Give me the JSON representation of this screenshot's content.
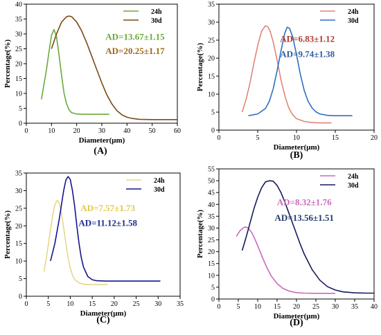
{
  "chart_data": [
    {
      "type": "line",
      "panel_label": "(A)",
      "xlabel": "Diameter(μm)",
      "ylabel": "Percentage(%)",
      "xlim": [
        0,
        60
      ],
      "ylim": [
        0,
        40
      ],
      "xticks": [
        0,
        10,
        20,
        30,
        40,
        50,
        60
      ],
      "yticks": [
        0,
        5,
        10,
        15,
        20,
        25,
        30,
        35,
        40
      ],
      "legend_position": "top-right",
      "annotations": [
        {
          "text": "AD=13.67±1.15",
          "color": "#6aaa3a"
        },
        {
          "text": "AD=20.25±1.17",
          "color": "#a0661a"
        }
      ],
      "series": [
        {
          "name": "24h",
          "color": "#6aaa3a",
          "x": [
            6,
            7,
            8,
            9,
            10,
            11,
            12,
            13,
            14,
            15,
            16,
            17,
            18,
            20,
            22,
            25,
            28,
            30,
            33
          ],
          "y": [
            8,
            13,
            18,
            24,
            29.5,
            31.5,
            29,
            23,
            16,
            10,
            6.5,
            4.5,
            3.5,
            3.1,
            3,
            3,
            3,
            3,
            3
          ]
        },
        {
          "name": "30d",
          "color": "#7b4a14",
          "x": [
            10,
            12,
            14,
            16,
            17,
            18,
            20,
            22,
            24,
            26,
            28,
            30,
            32,
            34,
            36,
            38,
            40,
            42,
            45,
            50,
            55,
            60
          ],
          "y": [
            25,
            30,
            34,
            35.8,
            36,
            35.8,
            34,
            31,
            27,
            22.5,
            18,
            13.5,
            9.5,
            6.5,
            4.2,
            2.8,
            2,
            1.6,
            1.3,
            1.2,
            1.2,
            1.2
          ]
        }
      ]
    },
    {
      "type": "line",
      "panel_label": "(B)",
      "xlabel": "Diameter(μm)",
      "ylabel": "Percentage(%)",
      "xlim": [
        0,
        20
      ],
      "ylim": [
        0,
        35
      ],
      "xticks": [
        0,
        5,
        10,
        15,
        20
      ],
      "yticks": [
        0,
        5,
        10,
        15,
        20,
        25,
        30,
        35
      ],
      "legend_position": "top-right",
      "annotations": [
        {
          "text": "AD=6.83±1.12",
          "color": "#b03a2e"
        },
        {
          "text": "AD=9.74±1.38",
          "color": "#2f5d9e"
        }
      ],
      "series": [
        {
          "name": "24h",
          "color": "#e08478",
          "x": [
            3,
            3.5,
            4,
            4.5,
            5,
            5.5,
            6,
            6.3,
            6.6,
            7,
            7.5,
            8,
            8.5,
            9,
            9.5,
            10,
            11,
            12,
            13,
            14.5
          ],
          "y": [
            5,
            8.5,
            13,
            18.5,
            23.5,
            27.5,
            29,
            28.7,
            27.5,
            24.5,
            19.5,
            14,
            9.5,
            6.2,
            4.3,
            3.2,
            2.4,
            2.1,
            2,
            2
          ]
        },
        {
          "name": "30d",
          "color": "#2f6ebf",
          "x": [
            3.8,
            5,
            6,
            6.5,
            7,
            7.5,
            8,
            8.5,
            8.8,
            9.1,
            9.5,
            10,
            10.5,
            11,
            11.5,
            12,
            12.5,
            13,
            14,
            15,
            16,
            17.2
          ],
          "y": [
            4,
            4.5,
            6,
            8,
            11.5,
            16.5,
            22,
            27,
            28.6,
            28.3,
            26,
            21,
            15.5,
            11,
            8,
            6.2,
            5.1,
            4.5,
            4.1,
            4,
            4,
            4
          ]
        }
      ]
    },
    {
      "type": "line",
      "panel_label": "(C)",
      "xlabel": "Diameter(μm)",
      "ylabel": "Percentage(%)",
      "xlim": [
        0,
        35
      ],
      "ylim": [
        0,
        35
      ],
      "xticks": [
        0,
        5,
        10,
        15,
        20,
        25,
        30,
        35
      ],
      "yticks": [
        0,
        5,
        10,
        15,
        20,
        25,
        30,
        35
      ],
      "legend_position": "top-right",
      "annotations": [
        {
          "text": "AD=7.57±1.73",
          "color": "#e1c84a"
        },
        {
          "text": "AD=11.12±1.58",
          "color": "#1f2e8c"
        }
      ],
      "series": [
        {
          "name": "24h",
          "color": "#e6d68e",
          "x": [
            4,
            4.5,
            5,
            5.5,
            6,
            6.5,
            7,
            7.3,
            7.6,
            8,
            8.5,
            9,
            9.5,
            10,
            10.5,
            11,
            12,
            13,
            14,
            15,
            16.5,
            18.5
          ],
          "y": [
            7,
            10.5,
            14.5,
            19,
            23,
            26,
            27.2,
            27,
            26,
            23.5,
            19.5,
            15,
            11,
            8,
            6,
            4.8,
            3.8,
            3.4,
            3.3,
            3.3,
            3.3,
            3.3
          ]
        },
        {
          "name": "30d",
          "color": "#14148c",
          "x": [
            5.5,
            6.5,
            7.5,
            8.5,
            9,
            9.5,
            10,
            10.5,
            11,
            11.5,
            12,
            12.5,
            13,
            14,
            15,
            16,
            18,
            20,
            25,
            30.5
          ],
          "y": [
            10,
            15,
            22,
            30,
            33,
            34,
            33.2,
            30,
            25.5,
            20,
            15,
            11,
            8.3,
            5.6,
            4.7,
            4.4,
            4.3,
            4.3,
            4.3,
            4.3
          ]
        }
      ]
    },
    {
      "type": "line",
      "panel_label": "(D)",
      "xlabel": "Diameter(μm)",
      "ylabel": "Percentage(%)",
      "xlim": [
        0,
        40
      ],
      "ylim": [
        0,
        55
      ],
      "xticks": [
        0,
        5,
        10,
        15,
        20,
        25,
        30,
        35,
        40
      ],
      "yticks": [
        0,
        5,
        10,
        15,
        20,
        25,
        30,
        35,
        40,
        45,
        50,
        55
      ],
      "legend_position": "top-right",
      "annotations": [
        {
          "text": "AD=8.32±1.76",
          "color": "#c86ab9"
        },
        {
          "text": "AD=13.56±1.51",
          "color": "#1f3a6e"
        }
      ],
      "series": [
        {
          "name": "24h",
          "color": "#c86ab9",
          "x": [
            4.5,
            5.5,
            6.5,
            7,
            7.5,
            8.5,
            9.5,
            10.5,
            11.5,
            12.5,
            13.5,
            15,
            16.5,
            18,
            20,
            22,
            25,
            27.5,
            30
          ],
          "y": [
            26.5,
            29,
            30.3,
            30.4,
            30,
            28,
            24.5,
            20.5,
            16.5,
            12.8,
            9.7,
            6.5,
            4.5,
            3.4,
            2.7,
            2.5,
            2.4,
            2.4,
            2.4
          ]
        },
        {
          "name": "30d",
          "color": "#141a5c",
          "x": [
            6,
            7,
            8,
            9,
            10,
            11,
            12,
            13,
            14,
            15,
            16,
            17,
            18,
            19,
            20,
            21,
            22,
            24,
            26,
            28,
            30,
            32,
            35,
            38,
            40
          ],
          "y": [
            20.5,
            26,
            32,
            38,
            43,
            47,
            49.5,
            50,
            49.8,
            48,
            45,
            41,
            36.5,
            32,
            27.5,
            23,
            19,
            12.5,
            8,
            5.2,
            3.8,
            3,
            2.6,
            2.5,
            2.5
          ]
        }
      ]
    }
  ]
}
